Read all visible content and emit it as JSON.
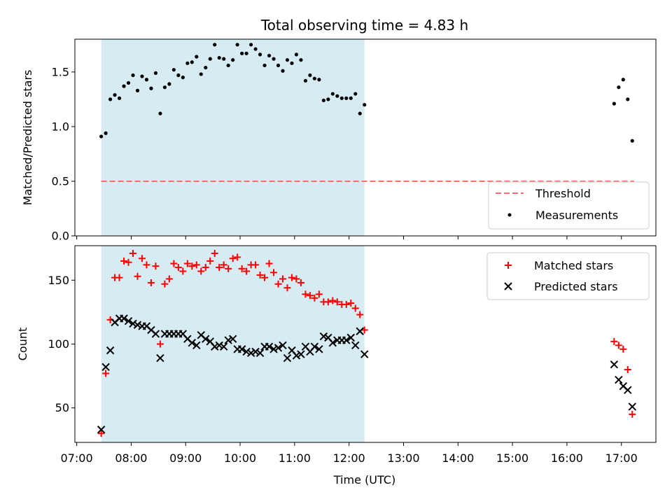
{
  "title": "Total observing time = 4.83 h",
  "xlabel": "Time (UTC)",
  "x_ticks": [
    "07:00",
    "08:00",
    "09:00",
    "10:00",
    "11:00",
    "12:00",
    "13:00",
    "14:00",
    "15:00",
    "16:00",
    "17:00"
  ],
  "colors": {
    "shade": "#add8e6",
    "threshold": "#ff6b6b",
    "matched": "#ff0000",
    "predicted": "#000000",
    "measurement": "#000000"
  },
  "chart_data": [
    {
      "type": "scatter",
      "ylabel": "Matched/Predicted stars",
      "ylim": [
        0,
        1.8
      ],
      "y_ticks": [
        "0.0",
        "0.5",
        "1.0",
        "1.5"
      ],
      "xlim": [
        "06:58",
        "17:38"
      ],
      "shaded_interval": [
        "07:27",
        "12:17"
      ],
      "threshold": {
        "value": 0.5,
        "from": "07:27",
        "to": "17:14"
      },
      "legend": {
        "placement": "lower-right",
        "entries": [
          "Threshold",
          "Measurements"
        ]
      },
      "series": [
        {
          "name": "Measurements",
          "points": [
            [
              "07:27",
              0.91
            ],
            [
              "07:32",
              0.94
            ],
            [
              "07:37",
              1.25
            ],
            [
              "07:42",
              1.29
            ],
            [
              "07:47",
              1.26
            ],
            [
              "07:52",
              1.37
            ],
            [
              "07:57",
              1.4
            ],
            [
              "08:02",
              1.47
            ],
            [
              "08:07",
              1.33
            ],
            [
              "08:12",
              1.46
            ],
            [
              "08:17",
              1.43
            ],
            [
              "08:22",
              1.35
            ],
            [
              "08:27",
              1.49
            ],
            [
              "08:32",
              1.12
            ],
            [
              "08:37",
              1.36
            ],
            [
              "08:42",
              1.39
            ],
            [
              "08:47",
              1.52
            ],
            [
              "08:52",
              1.47
            ],
            [
              "08:57",
              1.45
            ],
            [
              "09:02",
              1.58
            ],
            [
              "09:07",
              1.59
            ],
            [
              "09:12",
              1.64
            ],
            [
              "09:17",
              1.48
            ],
            [
              "09:22",
              1.54
            ],
            [
              "09:27",
              1.62
            ],
            [
              "09:32",
              1.75
            ],
            [
              "09:37",
              1.63
            ],
            [
              "09:42",
              1.62
            ],
            [
              "09:47",
              1.56
            ],
            [
              "09:52",
              1.61
            ],
            [
              "09:57",
              1.75
            ],
            [
              "10:02",
              1.67
            ],
            [
              "10:07",
              1.67
            ],
            [
              "10:12",
              1.75
            ],
            [
              "10:17",
              1.71
            ],
            [
              "10:22",
              1.66
            ],
            [
              "10:27",
              1.56
            ],
            [
              "10:32",
              1.65
            ],
            [
              "10:37",
              1.62
            ],
            [
              "10:42",
              1.56
            ],
            [
              "10:47",
              1.51
            ],
            [
              "10:52",
              1.61
            ],
            [
              "10:57",
              1.58
            ],
            [
              "11:02",
              1.66
            ],
            [
              "11:07",
              1.61
            ],
            [
              "11:12",
              1.42
            ],
            [
              "11:17",
              1.47
            ],
            [
              "11:22",
              1.44
            ],
            [
              "11:27",
              1.43
            ],
            [
              "11:32",
              1.24
            ],
            [
              "11:37",
              1.25
            ],
            [
              "11:42",
              1.3
            ],
            [
              "11:47",
              1.28
            ],
            [
              "11:52",
              1.26
            ],
            [
              "11:57",
              1.26
            ],
            [
              "12:02",
              1.26
            ],
            [
              "12:07",
              1.3
            ],
            [
              "12:12",
              1.12
            ],
            [
              "12:17",
              1.2
            ],
            [
              "16:52",
              1.21
            ],
            [
              "16:57",
              1.36
            ],
            [
              "17:02",
              1.43
            ],
            [
              "17:07",
              1.25
            ],
            [
              "17:12",
              0.87
            ]
          ]
        }
      ]
    },
    {
      "type": "scatter",
      "ylabel": "Count",
      "ylim": [
        23,
        177
      ],
      "y_ticks": [
        "50",
        "100",
        "150"
      ],
      "xlim": [
        "06:58",
        "17:38"
      ],
      "shaded_interval": [
        "07:27",
        "12:17"
      ],
      "legend": {
        "placement": "upper-right",
        "entries": [
          "Matched stars",
          "Predicted stars"
        ]
      },
      "series": [
        {
          "name": "Matched stars",
          "marker": "plus",
          "points": [
            [
              "07:27",
              30
            ],
            [
              "07:32",
              77
            ],
            [
              "07:37",
              119
            ],
            [
              "07:42",
              152
            ],
            [
              "07:47",
              152
            ],
            [
              "07:52",
              165
            ],
            [
              "07:57",
              164
            ],
            [
              "08:02",
              171
            ],
            [
              "08:07",
              153
            ],
            [
              "08:12",
              167
            ],
            [
              "08:17",
              162
            ],
            [
              "08:22",
              148
            ],
            [
              "08:27",
              161
            ],
            [
              "08:32",
              100
            ],
            [
              "08:37",
              147
            ],
            [
              "08:42",
              151
            ],
            [
              "08:47",
              163
            ],
            [
              "08:52",
              160
            ],
            [
              "08:57",
              157
            ],
            [
              "09:02",
              163
            ],
            [
              "09:07",
              161
            ],
            [
              "09:12",
              162
            ],
            [
              "09:17",
              157
            ],
            [
              "09:22",
              160
            ],
            [
              "09:27",
              165
            ],
            [
              "09:32",
              171
            ],
            [
              "09:37",
              160
            ],
            [
              "09:42",
              162
            ],
            [
              "09:47",
              159
            ],
            [
              "09:52",
              167
            ],
            [
              "09:57",
              168
            ],
            [
              "10:02",
              159
            ],
            [
              "10:07",
              157
            ],
            [
              "10:12",
              162
            ],
            [
              "10:17",
              162
            ],
            [
              "10:22",
              154
            ],
            [
              "10:27",
              152
            ],
            [
              "10:32",
              163
            ],
            [
              "10:37",
              156
            ],
            [
              "10:42",
              147
            ],
            [
              "10:47",
              151
            ],
            [
              "10:52",
              144
            ],
            [
              "10:57",
              152
            ],
            [
              "11:02",
              151
            ],
            [
              "11:07",
              148
            ],
            [
              "11:12",
              139
            ],
            [
              "11:17",
              138
            ],
            [
              "11:22",
              136
            ],
            [
              "11:27",
              139
            ],
            [
              "11:32",
              133
            ],
            [
              "11:37",
              133
            ],
            [
              "11:42",
              134
            ],
            [
              "11:47",
              133
            ],
            [
              "11:52",
              131
            ],
            [
              "11:57",
              131
            ],
            [
              "12:02",
              132
            ],
            [
              "12:07",
              128
            ],
            [
              "12:12",
              123
            ],
            [
              "12:17",
              111
            ],
            [
              "16:52",
              102
            ],
            [
              "16:57",
              99
            ],
            [
              "17:02",
              96
            ],
            [
              "17:07",
              80
            ],
            [
              "17:12",
              45
            ]
          ]
        },
        {
          "name": "Predicted stars",
          "marker": "x",
          "points": [
            [
              "07:27",
              33
            ],
            [
              "07:32",
              82
            ],
            [
              "07:37",
              95
            ],
            [
              "07:42",
              117
            ],
            [
              "07:47",
              120
            ],
            [
              "07:52",
              120
            ],
            [
              "07:57",
              118
            ],
            [
              "08:02",
              116
            ],
            [
              "08:07",
              115
            ],
            [
              "08:12",
              114
            ],
            [
              "08:17",
              114
            ],
            [
              "08:22",
              111
            ],
            [
              "08:27",
              108
            ],
            [
              "08:32",
              89
            ],
            [
              "08:37",
              108
            ],
            [
              "08:42",
              108
            ],
            [
              "08:47",
              108
            ],
            [
              "08:52",
              108
            ],
            [
              "08:57",
              108
            ],
            [
              "09:02",
              104
            ],
            [
              "09:07",
              101
            ],
            [
              "09:12",
              99
            ],
            [
              "09:17",
              107
            ],
            [
              "09:22",
              104
            ],
            [
              "09:27",
              102
            ],
            [
              "09:32",
              98
            ],
            [
              "09:37",
              99
            ],
            [
              "09:42",
              98
            ],
            [
              "09:47",
              103
            ],
            [
              "09:52",
              104
            ],
            [
              "09:57",
              96
            ],
            [
              "10:02",
              96
            ],
            [
              "10:07",
              94
            ],
            [
              "10:12",
              93
            ],
            [
              "10:17",
              94
            ],
            [
              "10:22",
              93
            ],
            [
              "10:27",
              98
            ],
            [
              "10:32",
              98
            ],
            [
              "10:37",
              96
            ],
            [
              "10:42",
              97
            ],
            [
              "10:47",
              99
            ],
            [
              "10:52",
              89
            ],
            [
              "10:57",
              95
            ],
            [
              "11:02",
              91
            ],
            [
              "11:07",
              92
            ],
            [
              "11:12",
              98
            ],
            [
              "11:17",
              94
            ],
            [
              "11:22",
              98
            ],
            [
              "11:27",
              96
            ],
            [
              "11:32",
              106
            ],
            [
              "11:37",
              105
            ],
            [
              "11:42",
              101
            ],
            [
              "11:47",
              103
            ],
            [
              "11:52",
              103
            ],
            [
              "11:57",
              103
            ],
            [
              "12:02",
              105
            ],
            [
              "12:07",
              99
            ],
            [
              "12:12",
              110
            ],
            [
              "12:17",
              92
            ],
            [
              "16:52",
              84
            ],
            [
              "16:57",
              72
            ],
            [
              "17:02",
              67
            ],
            [
              "17:07",
              64
            ],
            [
              "17:12",
              51
            ]
          ]
        }
      ]
    }
  ]
}
